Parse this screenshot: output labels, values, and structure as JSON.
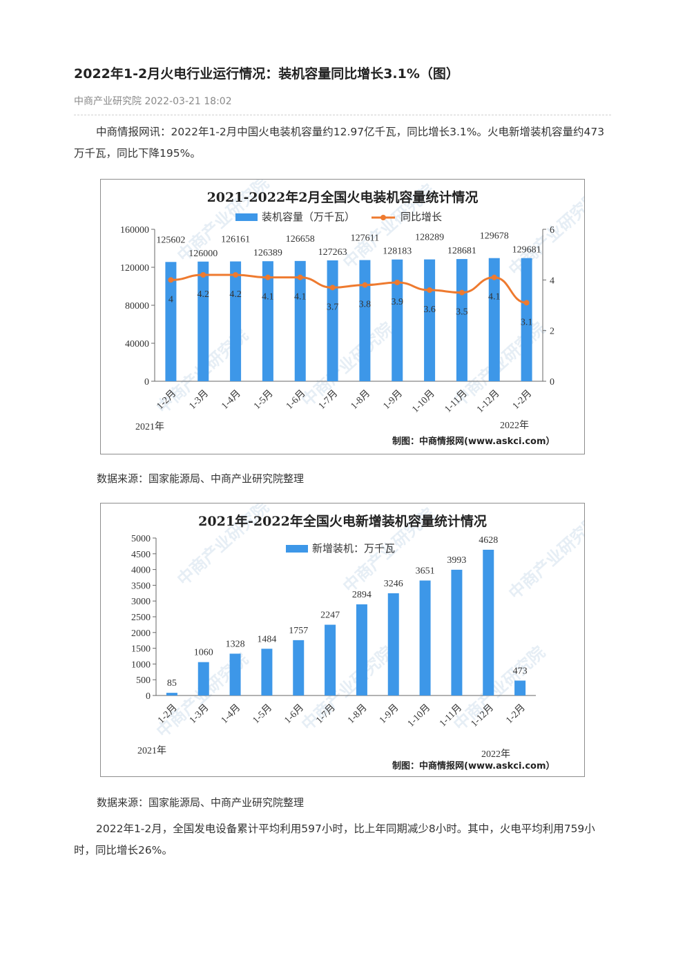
{
  "article": {
    "title": "2022年1-2月火电行业运行情况：装机容量同比增长3.1%（图）",
    "meta": "中商产业研究院 2022-03-21 18:02",
    "para1": "中商情报网讯：2022年1-2月中国火电装机容量约12.97亿千瓦，同比增长3.1%。火电新增装机容量约473万千瓦，同比下降195%。",
    "source1": "数据来源：国家能源局、中商产业研究院整理",
    "source2": "数据来源：国家能源局、中商产业研究院整理",
    "para2": "2022年1-2月，全国发电设备累计平均利用597小时，比上年同期减少8小时。其中，火电平均利用759小时，同比增长26%。"
  },
  "chart_data": [
    {
      "type": "bar",
      "title": "2021-2022年2月全国火电装机容量统计情况",
      "categories": [
        "1-2月",
        "1-3月",
        "1-4月",
        "1-5月",
        "1-6月",
        "1-7月",
        "1-8月",
        "1-9月",
        "1-10月",
        "1-11月",
        "1-12月",
        "1-2月"
      ],
      "year_start_label": "2021年",
      "year_end_label": "2022年",
      "series": [
        {
          "name": "装机容量（万千瓦）",
          "type": "bar",
          "axis": "left",
          "color": "#3d97e8",
          "values": [
            125602,
            126000,
            126161,
            126389,
            126658,
            127263,
            127611,
            128183,
            128289,
            128681,
            129678,
            129681
          ]
        },
        {
          "name": "同比增长",
          "type": "line",
          "axis": "right",
          "color": "#ee7a2f",
          "values": [
            4,
            4.2,
            4.2,
            4.1,
            4.1,
            3.7,
            3.8,
            3.9,
            3.6,
            3.5,
            4.1,
            3.1
          ]
        }
      ],
      "ylim": [
        0,
        160000
      ],
      "yticks": [
        0,
        40000,
        80000,
        120000,
        160000
      ],
      "y2lim": [
        0,
        6
      ],
      "y2ticks": [
        0,
        2,
        4,
        6
      ],
      "credit": "制图：中商情报网(www.askci.com）",
      "watermark": "中商产业研究院"
    },
    {
      "type": "bar",
      "title": "2021年-2022年全国火电新增装机容量统计情况",
      "categories": [
        "1-2月",
        "1-3月",
        "1-4月",
        "1-5月",
        "1-6月",
        "1-7月",
        "1-8月",
        "1-9月",
        "1-10月",
        "1-11月",
        "1-12月",
        "1-2月"
      ],
      "year_start_label": "2021年",
      "year_end_label": "2022年",
      "series": [
        {
          "name": "新增装机：万千瓦",
          "type": "bar",
          "axis": "left",
          "color": "#3d97e8",
          "values": [
            85,
            1060,
            1328,
            1484,
            1757,
            2247,
            2894,
            3246,
            3651,
            3993,
            4628,
            473
          ]
        }
      ],
      "ylim": [
        0,
        5000
      ],
      "yticks": [
        0,
        500,
        1000,
        1500,
        2000,
        2500,
        3000,
        3500,
        4000,
        4500,
        5000
      ],
      "credit": "制图：中商情报网(www.askci.com）",
      "watermark": "中商产业研究院"
    }
  ]
}
